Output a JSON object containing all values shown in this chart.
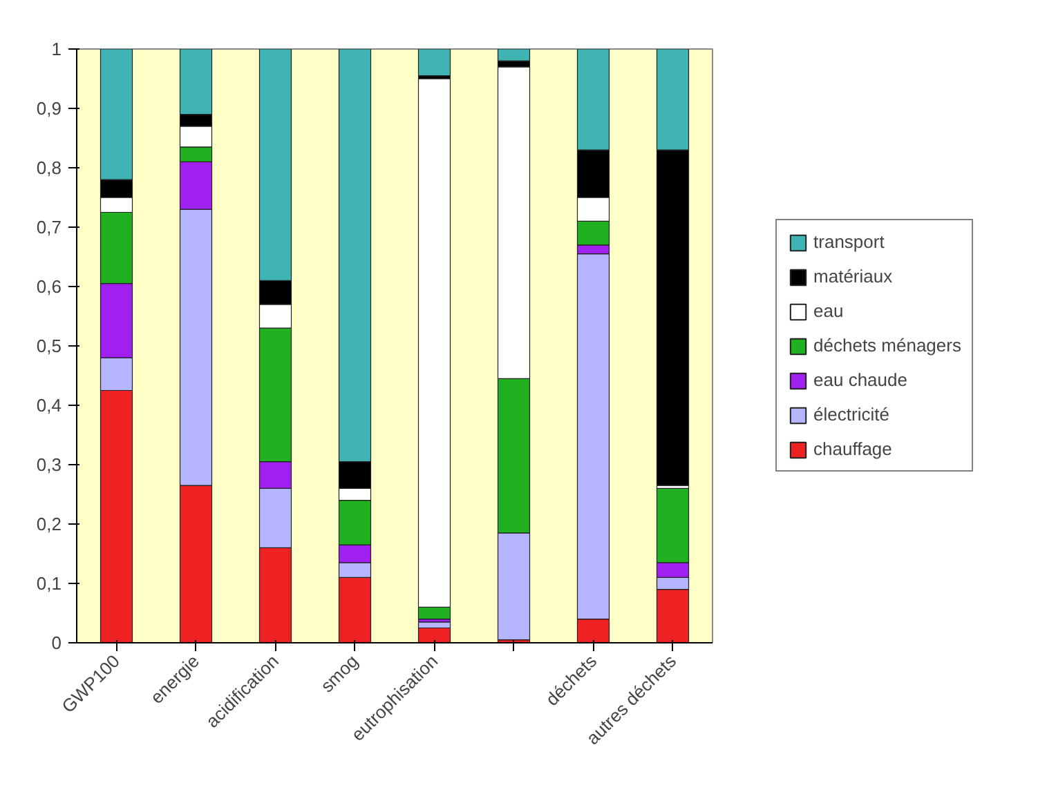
{
  "chart_data": {
    "type": "bar",
    "stacked": true,
    "categories": [
      "GWP100",
      "energie",
      "acidification",
      "smog",
      "eutrophisation",
      null,
      "déchets",
      "autres déchets"
    ],
    "series": [
      {
        "name": "chauffage",
        "color": "#ee2222",
        "values": [
          0.425,
          0.265,
          0.16,
          0.11,
          0.025,
          0.005,
          0.04,
          0.09
        ]
      },
      {
        "name": "électricité",
        "color": "#b4b4ff",
        "values": [
          0.055,
          0.465,
          0.1,
          0.025,
          0.01,
          0.18,
          0.615,
          0.02
        ]
      },
      {
        "name": "eau chaude",
        "color": "#a020f0",
        "values": [
          0.125,
          0.08,
          0.045,
          0.03,
          0.005,
          0,
          0.015,
          0.025
        ]
      },
      {
        "name": "déchets ménagers",
        "color": "#20b020",
        "values": [
          0.12,
          0.025,
          0.225,
          0.075,
          0.02,
          0.26,
          0.04,
          0.125
        ]
      },
      {
        "name": "eau",
        "color": "#ffffff",
        "values": [
          0.025,
          0.035,
          0.04,
          0.02,
          0.89,
          0.525,
          0.04,
          0.005
        ]
      },
      {
        "name": "matériaux",
        "color": "#000000",
        "values": [
          0.03,
          0.02,
          0.04,
          0.045,
          0.005,
          0.01,
          0.08,
          0.565
        ]
      },
      {
        "name": "transport",
        "color": "#40b4b4",
        "values": [
          0.22,
          0.11,
          0.39,
          0.695,
          0.045,
          0.02,
          0.17,
          0.17
        ]
      }
    ],
    "ylim": [
      0,
      1
    ],
    "yticks": [
      0,
      {
        "value": 0.1,
        "label": "0,1"
      },
      {
        "value": 0.2,
        "label": "0,2"
      },
      {
        "value": 0.3,
        "label": "0,3"
      },
      {
        "value": 0.4,
        "label": "0,4"
      },
      {
        "value": 0.5,
        "label": "0,5"
      },
      {
        "value": 0.6,
        "label": "0,6"
      },
      {
        "value": 0.7,
        "label": "0,7"
      },
      {
        "value": 0.8,
        "label": "0,8"
      },
      {
        "value": 0.9,
        "label": "0,9"
      },
      1
    ],
    "grid": false,
    "legend": "right"
  }
}
